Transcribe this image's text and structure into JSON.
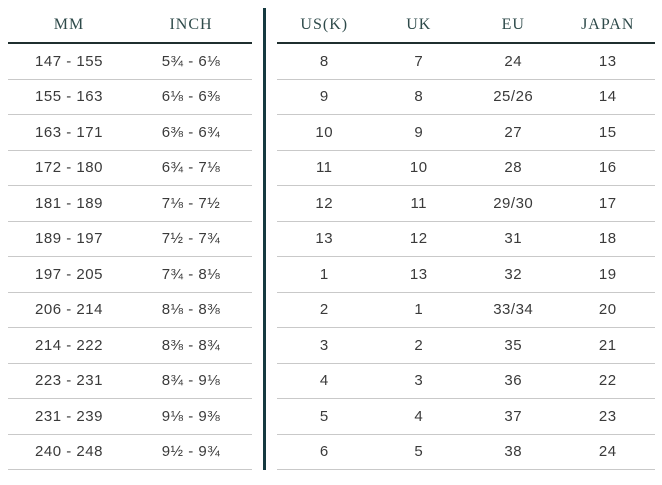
{
  "colors": {
    "background": "#ffffff",
    "header_text": "#2e4a4a",
    "data_text": "#3a3a3a",
    "divider": "#163a40",
    "header_underline": "#1f2f2f",
    "row_separator": "#c9c9c9"
  },
  "chart_data": [
    {
      "type": "table",
      "columns": [
        "MM",
        "INCH"
      ],
      "rows": [
        [
          "147 - 155",
          "5¾ - 6⅛"
        ],
        [
          "155 - 163",
          "6⅛ - 6⅜"
        ],
        [
          "163 - 171",
          "6⅜ - 6¾"
        ],
        [
          "172 - 180",
          "6¾ - 7⅛"
        ],
        [
          "181 - 189",
          "7⅛ - 7½"
        ],
        [
          "189 - 197",
          "7½ - 7¾"
        ],
        [
          "197 - 205",
          "7¾ - 8⅛"
        ],
        [
          "206 - 214",
          "8⅛ - 8⅜"
        ],
        [
          "214 - 222",
          "8⅜ - 8¾"
        ],
        [
          "223 - 231",
          "8¾ - 9⅛"
        ],
        [
          "231 - 239",
          "9⅛ - 9⅜"
        ],
        [
          "240 - 248",
          "9½ - 9¾"
        ]
      ]
    },
    {
      "type": "table",
      "columns": [
        "US(K)",
        "UK",
        "EU",
        "JAPAN"
      ],
      "rows": [
        [
          "8",
          "7",
          "24",
          "13"
        ],
        [
          "9",
          "8",
          "25/26",
          "14"
        ],
        [
          "10",
          "9",
          "27",
          "15"
        ],
        [
          "11",
          "10",
          "28",
          "16"
        ],
        [
          "12",
          "11",
          "29/30",
          "17"
        ],
        [
          "13",
          "12",
          "31",
          "18"
        ],
        [
          "1",
          "13",
          "32",
          "19"
        ],
        [
          "2",
          "1",
          "33/34",
          "20"
        ],
        [
          "3",
          "2",
          "35",
          "21"
        ],
        [
          "4",
          "3",
          "36",
          "22"
        ],
        [
          "5",
          "4",
          "37",
          "23"
        ],
        [
          "6",
          "5",
          "38",
          "24"
        ]
      ]
    }
  ]
}
